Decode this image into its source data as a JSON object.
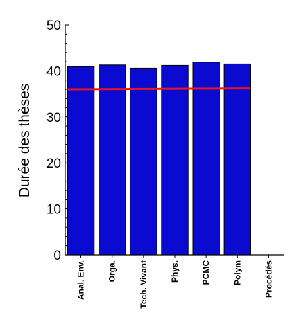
{
  "chart_data": {
    "type": "bar",
    "title": "",
    "xlabel": "",
    "ylabel": "Durée des thèses",
    "ylim": [
      0,
      50
    ],
    "yticks": [
      0,
      10,
      20,
      30,
      40,
      50
    ],
    "grid": false,
    "categories": [
      "Anal. Env.",
      "Orga.",
      "Tech. Vivant",
      "Phys.",
      "PCMC",
      "Polym",
      "Procédés"
    ],
    "values": [
      40.9,
      41.3,
      40.6,
      41.2,
      41.9,
      41.5,
      null
    ],
    "reference_line": {
      "start": 36.0,
      "end": 36.2
    },
    "colors": {
      "bar": "#0a0ad0",
      "bar_edge": "#000000",
      "reference_line": "#e8141e"
    }
  }
}
